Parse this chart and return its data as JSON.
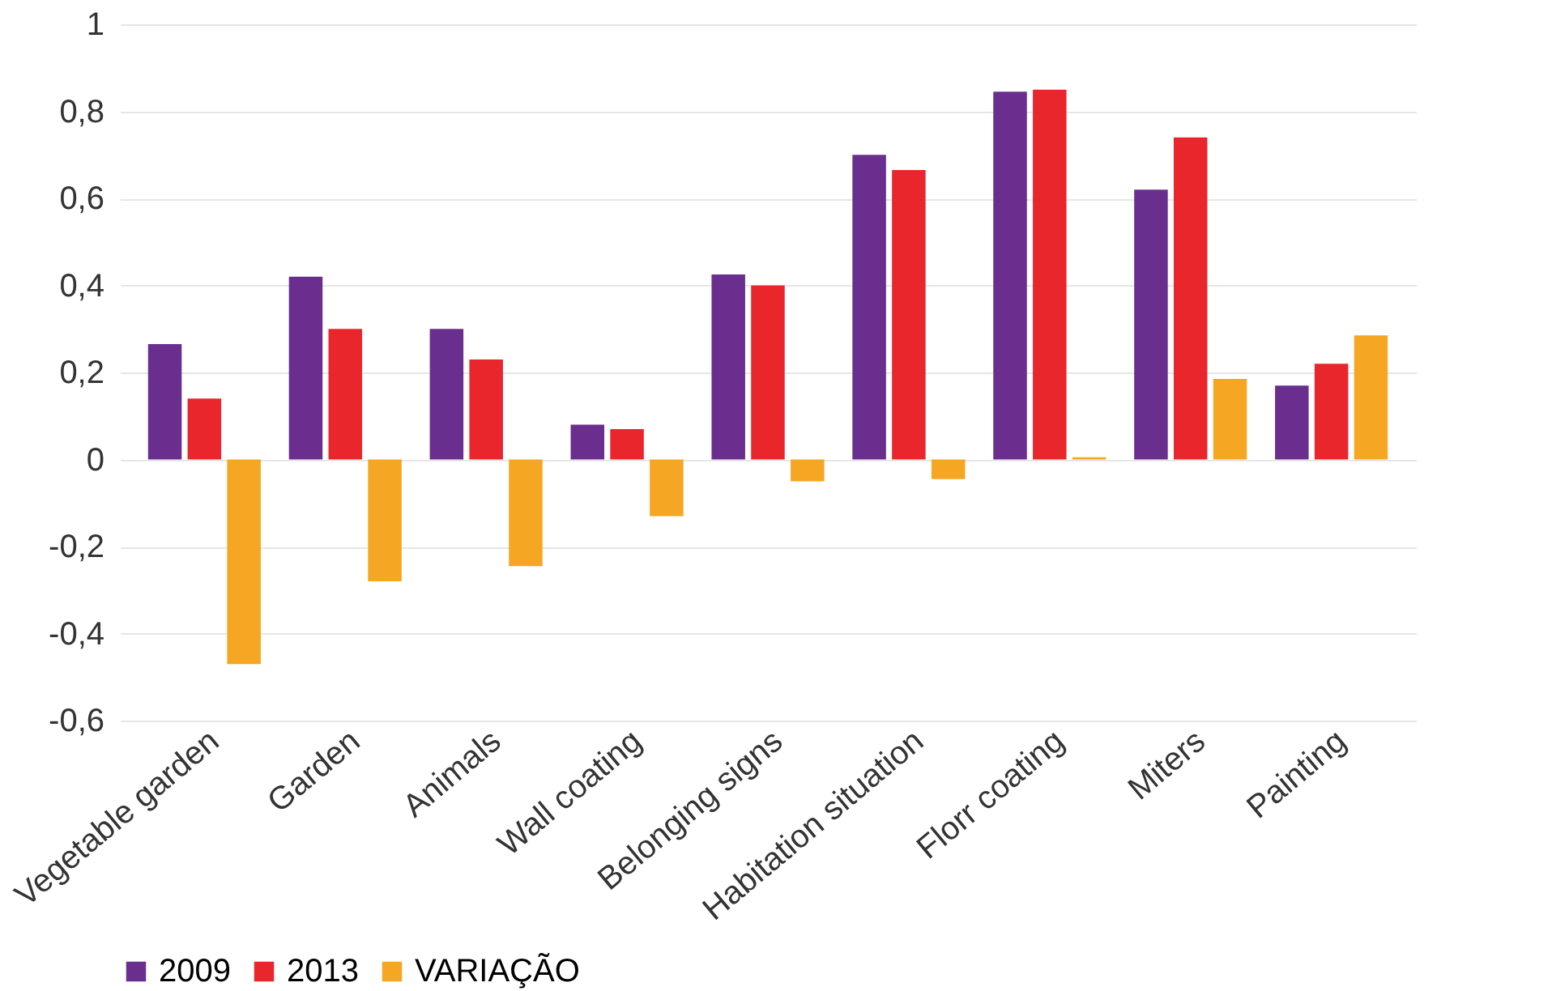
{
  "chart_data": {
    "type": "bar",
    "categories": [
      "Vegetable garden",
      "Garden",
      "Animals",
      "Wall coating",
      "Belonging signs",
      "Habitation situation",
      "Florr coating",
      "Miters",
      "Painting"
    ],
    "series": [
      {
        "name": "2009",
        "color": "#6a2e8f",
        "values": [
          0.265,
          0.42,
          0.3,
          0.08,
          0.425,
          0.7,
          0.845,
          0.62,
          0.17
        ]
      },
      {
        "name": "2013",
        "color": "#e8262b",
        "values": [
          0.14,
          0.3,
          0.23,
          0.07,
          0.4,
          0.665,
          0.85,
          0.74,
          0.22
        ]
      },
      {
        "name": "VARIAÇÃO",
        "color": "#f5a623",
        "values": [
          -0.47,
          -0.28,
          -0.245,
          -0.13,
          -0.05,
          -0.045,
          0.005,
          0.185,
          0.285
        ]
      }
    ],
    "ylim": [
      -0.6,
      1
    ],
    "yticks": [
      {
        "value": -0.6,
        "label": "-0,6"
      },
      {
        "value": -0.4,
        "label": "-0,4"
      },
      {
        "value": -0.2,
        "label": "-0,2"
      },
      0,
      {
        "value": 0.2,
        "label": "0,2"
      },
      {
        "value": 0.4,
        "label": "0,4"
      },
      {
        "value": 0.6,
        "label": "0,6"
      },
      {
        "value": 0.8,
        "label": "0,8"
      },
      1
    ],
    "grid": "y",
    "legend": "bottom"
  }
}
